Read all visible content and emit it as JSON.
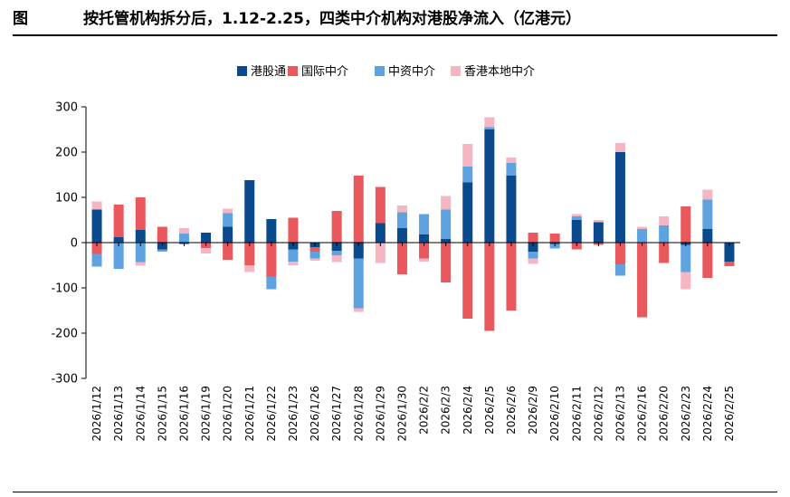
{
  "header": {
    "label": "图",
    "title": "按托管机构拆分后，1.12-2.25，四类中介机构对港股净流入（亿港元）"
  },
  "chart_data": {
    "type": "bar",
    "stacked": true,
    "title": "按托管机构拆分后，1.12-2.25，四类中介机构对港股净流入（亿港元）",
    "xlabel": "",
    "ylabel": "",
    "ylim": [
      -300,
      300
    ],
    "yticks": [
      -300,
      -200,
      -100,
      0,
      100,
      200,
      300
    ],
    "legend_position": "top-center",
    "categories": [
      "2026/1/12",
      "2026/1/13",
      "2026/1/14",
      "2026/1/15",
      "2026/1/16",
      "2026/1/19",
      "2026/1/20",
      "2026/1/21",
      "2026/1/22",
      "2026/1/23",
      "2026/1/26",
      "2026/1/27",
      "2026/1/28",
      "2026/1/29",
      "2026/1/30",
      "2026/2/2",
      "2026/2/3",
      "2026/2/4",
      "2026/2/5",
      "2026/2/6",
      "2026/2/9",
      "2026/2/10",
      "2026/2/11",
      "2026/2/12",
      "2026/2/13",
      "2026/2/16",
      "2026/2/20",
      "2026/2/23",
      "2026/2/24",
      "2026/2/25"
    ],
    "series": [
      {
        "name": "港股通",
        "color": "#0a4a8c",
        "values": [
          73,
          12,
          28,
          -15,
          -3,
          22,
          35,
          138,
          52,
          -15,
          -10,
          -18,
          -35,
          43,
          32,
          18,
          8,
          133,
          250,
          148,
          -20,
          -3,
          50,
          45,
          200,
          0,
          0,
          -5,
          30,
          -42
        ]
      },
      {
        "name": "国际中介",
        "color": "#e8585c",
        "values": [
          -25,
          72,
          72,
          35,
          0,
          -12,
          -38,
          -50,
          -75,
          55,
          -10,
          70,
          148,
          80,
          -70,
          -35,
          -88,
          -168,
          -195,
          -150,
          22,
          20,
          -15,
          -5,
          -48,
          -165,
          -45,
          80,
          -78,
          -10
        ]
      },
      {
        "name": "中资中介",
        "color": "#5ea3e0",
        "values": [
          -28,
          -58,
          -43,
          -5,
          20,
          0,
          30,
          0,
          -27,
          -27,
          -15,
          -10,
          -110,
          0,
          35,
          45,
          65,
          35,
          5,
          28,
          -15,
          -10,
          8,
          0,
          -25,
          30,
          38,
          -60,
          65,
          0
        ]
      },
      {
        "name": "香港本地中介",
        "color": "#f5b6c3",
        "values": [
          18,
          0,
          -8,
          0,
          12,
          -12,
          10,
          -15,
          -2,
          -8,
          -5,
          -15,
          -8,
          -45,
          15,
          -7,
          30,
          50,
          22,
          12,
          -12,
          0,
          5,
          5,
          20,
          5,
          20,
          -38,
          22,
          0
        ]
      }
    ]
  }
}
